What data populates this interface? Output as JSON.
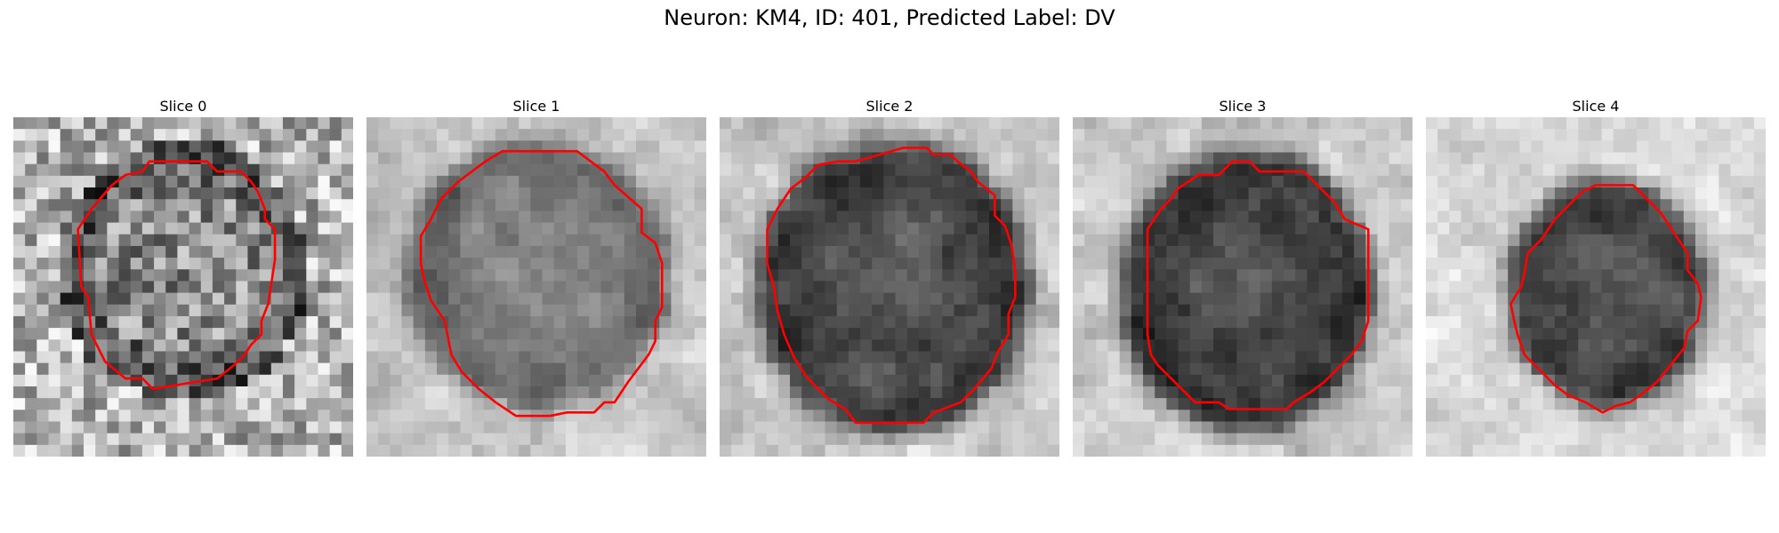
{
  "figure": {
    "title": "Neuron: KM4, ID: 401, Predicted Label: DV"
  },
  "colors": {
    "contour": "#ff0000",
    "background": "#ffffff"
  },
  "slices": [
    {
      "title": "Slice 0"
    },
    {
      "title": "Slice 1"
    },
    {
      "title": "Slice 2"
    },
    {
      "title": "Slice 3"
    },
    {
      "title": "Slice 4"
    }
  ]
}
